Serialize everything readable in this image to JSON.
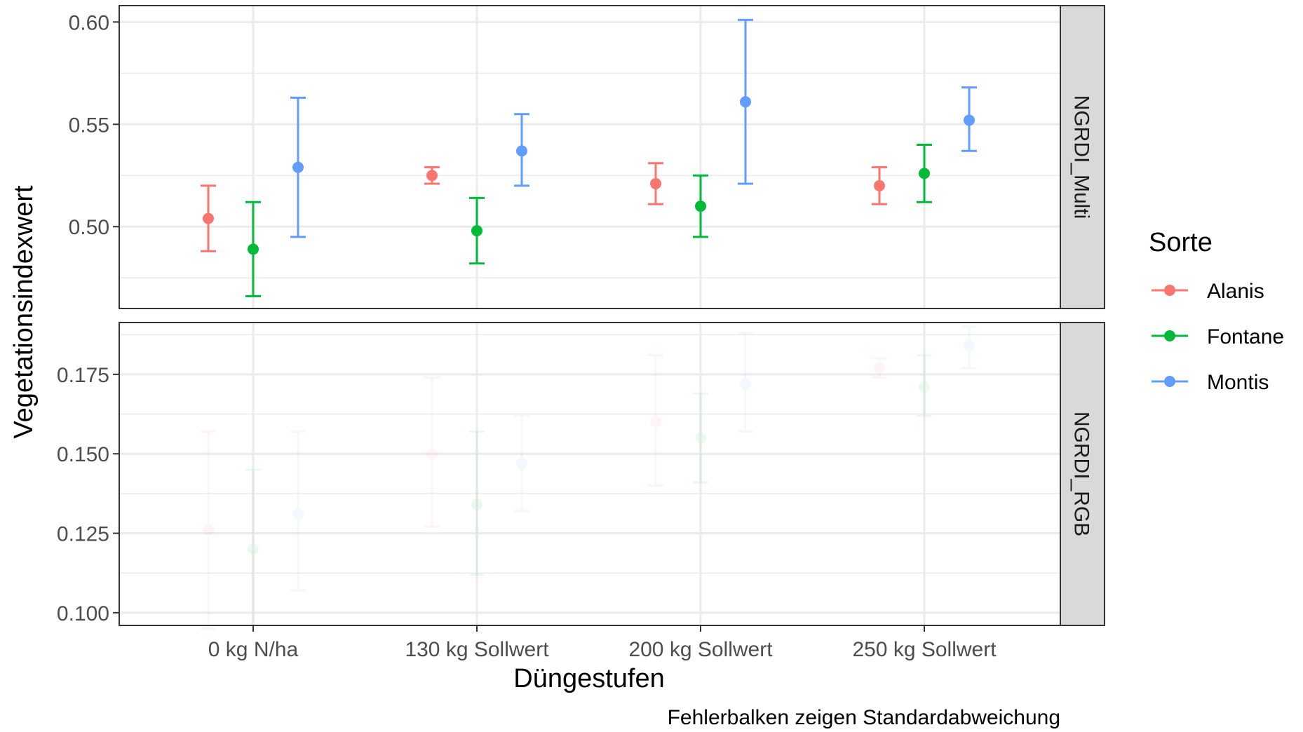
{
  "chart_data": {
    "type": "scatter",
    "subtype": "point-with-error-bars, faceted",
    "xlabel": "Düngestufen",
    "ylabel": "Vegetationsindexwert",
    "caption": "Fehlerbalken zeigen Standardabweichung",
    "categories": [
      "0 kg N/ha",
      "130 kg Sollwert",
      "200 kg Sollwert",
      "250 kg Sollwert"
    ],
    "legend": {
      "title": "Sorte",
      "position": "right",
      "entries": [
        {
          "name": "Alanis",
          "color": "#F8766D"
        },
        {
          "name": "Fontane",
          "color": "#00BA38"
        },
        {
          "name": "Montis",
          "color": "#619CFF"
        }
      ]
    },
    "grid": true,
    "theme_colors": {
      "panel_border": "#333333",
      "strip_fill": "#D9D9D9",
      "grid": "#EBEBEB",
      "text": "#1A1A1A"
    },
    "facets": [
      {
        "label": "NGRDI_Multi",
        "ylim": [
          0.46,
          0.608
        ],
        "yticks": [
          0.5,
          0.55,
          0.6
        ],
        "ytick_labels": [
          "0.50",
          "0.55",
          "0.60"
        ],
        "series": [
          {
            "name": "Alanis",
            "color": "#F8766D",
            "mean": [
              0.504,
              0.525,
              0.521,
              0.52
            ],
            "lower": [
              0.488,
              0.521,
              0.511,
              0.511
            ],
            "upper": [
              0.52,
              0.529,
              0.531,
              0.529
            ]
          },
          {
            "name": "Fontane",
            "color": "#00BA38",
            "mean": [
              0.489,
              0.498,
              0.51,
              0.526
            ],
            "lower": [
              0.466,
              0.482,
              0.495,
              0.512
            ],
            "upper": [
              0.512,
              0.514,
              0.525,
              0.54
            ]
          },
          {
            "name": "Montis",
            "color": "#619CFF",
            "mean": [
              0.529,
              0.537,
              0.561,
              0.552
            ],
            "lower": [
              0.495,
              0.52,
              0.521,
              0.537
            ],
            "upper": [
              0.563,
              0.555,
              0.601,
              0.568
            ]
          }
        ]
      },
      {
        "label": "NGRDI_RGB",
        "faded": true,
        "ylim": [
          0.096,
          0.1913
        ],
        "yticks": [
          0.1,
          0.125,
          0.15,
          0.175
        ],
        "ytick_labels": [
          "0.100",
          "0.125",
          "0.150",
          "0.175"
        ],
        "series": [
          {
            "name": "Alanis",
            "color": "#F8766D",
            "mean": [
              0.126,
              0.15,
              0.16,
              0.177
            ],
            "lower": [
              0.095,
              0.127,
              0.14,
              0.174
            ],
            "upper": [
              0.157,
              0.174,
              0.181,
              0.18
            ]
          },
          {
            "name": "Fontane",
            "color": "#00BA38",
            "mean": [
              0.12,
              0.134,
              0.155,
              0.171
            ],
            "lower": [
              0.096,
              0.112,
              0.141,
              0.162
            ],
            "upper": [
              0.145,
              0.157,
              0.169,
              0.181
            ]
          },
          {
            "name": "Montis",
            "color": "#619CFF",
            "mean": [
              0.131,
              0.147,
              0.172,
              0.184
            ],
            "lower": [
              0.107,
              0.132,
              0.157,
              0.177
            ],
            "upper": [
              0.157,
              0.162,
              0.188,
              0.19
            ]
          }
        ]
      }
    ]
  }
}
